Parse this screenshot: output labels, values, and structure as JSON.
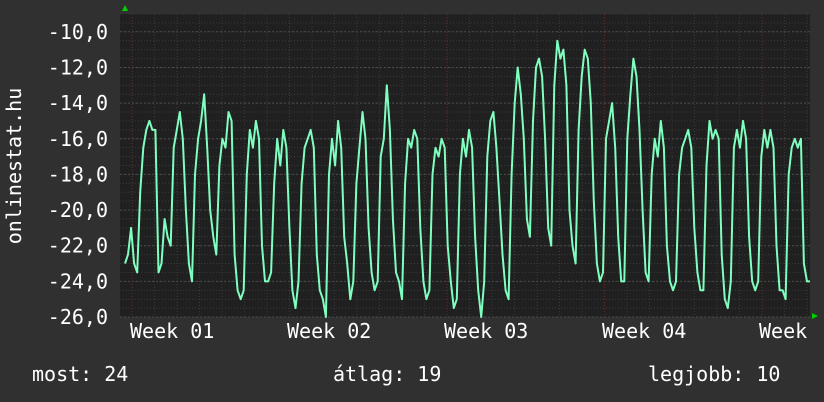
{
  "chart_data": {
    "type": "line",
    "ylabel": "onlinestat.hu",
    "ylim": [
      -26.0,
      -9.0
    ],
    "yticks": [
      "-10,0",
      "-12,0",
      "-14,0",
      "-16,0",
      "-18,0",
      "-20,0",
      "-22,0",
      "-24,0",
      "-26,0"
    ],
    "ytick_values": [
      -10,
      -12,
      -14,
      -16,
      -18,
      -20,
      -22,
      -24,
      -26
    ],
    "xticks": [
      "Week 01",
      "Week 02",
      "Week 03",
      "Week 04",
      "Week"
    ],
    "grid": true,
    "series": [
      {
        "color": "#7fffbf",
        "values": [
          -23.0,
          -22.5,
          -21.0,
          -23.0,
          -23.5,
          -19.0,
          -16.5,
          -15.5,
          -15.0,
          -15.5,
          -15.5,
          -23.5,
          -23.0,
          -20.5,
          -21.5,
          -22.0,
          -16.5,
          -15.5,
          -14.5,
          -16.0,
          -20.0,
          -23.0,
          -24.0,
          -18.0,
          -16.0,
          -15.0,
          -13.5,
          -16.5,
          -20.0,
          -21.5,
          -22.5,
          -17.5,
          -16.0,
          -16.5,
          -14.5,
          -15.0,
          -22.5,
          -24.5,
          -25.0,
          -24.5,
          -18.0,
          -15.5,
          -16.5,
          -15.0,
          -16.0,
          -22.0,
          -24.0,
          -24.0,
          -23.5,
          -18.5,
          -16.0,
          -17.5,
          -15.5,
          -16.5,
          -21.0,
          -24.5,
          -25.5,
          -24.0,
          -18.5,
          -16.5,
          -16.0,
          -15.5,
          -16.5,
          -22.5,
          -24.5,
          -25.0,
          -26.0,
          -18.0,
          -16.0,
          -17.5,
          -15.0,
          -16.5,
          -21.5,
          -23.0,
          -25.0,
          -24.0,
          -18.5,
          -16.5,
          -14.5,
          -16.0,
          -21.0,
          -23.5,
          -24.5,
          -24.0,
          -17.0,
          -16.0,
          -13.0,
          -15.5,
          -20.5,
          -23.5,
          -24.0,
          -25.0,
          -18.5,
          -16.0,
          -16.5,
          -15.5,
          -16.0,
          -21.0,
          -24.0,
          -25.0,
          -24.5,
          -18.0,
          -16.5,
          -17.0,
          -16.0,
          -16.5,
          -22.0,
          -24.0,
          -25.5,
          -25.0,
          -18.0,
          -16.0,
          -17.0,
          -15.5,
          -16.5,
          -21.5,
          -24.5,
          -26.0,
          -24.0,
          -17.0,
          -15.0,
          -14.5,
          -16.5,
          -19.5,
          -22.5,
          -24.5,
          -25.0,
          -18.0,
          -14.0,
          -12.0,
          -13.5,
          -16.0,
          -20.5,
          -21.5,
          -15.0,
          -12.0,
          -11.5,
          -12.5,
          -16.0,
          -21.0,
          -22.0,
          -13.0,
          -10.5,
          -11.5,
          -11.0,
          -13.0,
          -20.0,
          -22.0,
          -23.0,
          -15.5,
          -12.5,
          -11.0,
          -11.5,
          -14.0,
          -19.5,
          -23.0,
          -24.0,
          -23.5,
          -16.0,
          -15.0,
          -14.0,
          -16.5,
          -21.5,
          -24.0,
          -24.0,
          -16.0,
          -13.5,
          -11.5,
          -12.5,
          -15.5,
          -20.0,
          -23.5,
          -24.0,
          -18.0,
          -16.0,
          -17.0,
          -15.0,
          -16.5,
          -22.0,
          -24.0,
          -24.5,
          -24.0,
          -18.0,
          -16.5,
          -16.0,
          -15.5,
          -16.5,
          -21.0,
          -23.5,
          -24.5,
          -24.5,
          -17.5,
          -15.0,
          -16.0,
          -15.5,
          -16.0,
          -22.5,
          -25.0,
          -25.5,
          -24.0,
          -16.5,
          -15.5,
          -16.5,
          -15.0,
          -16.0,
          -21.5,
          -24.0,
          -24.5,
          -24.0,
          -17.0,
          -15.5,
          -16.5,
          -15.5,
          -16.5,
          -22.0,
          -24.5,
          -24.5,
          -25.0,
          -18.0,
          -16.5,
          -16.0,
          -16.5,
          -16.0,
          -23.0,
          -24.0,
          -24.0
        ]
      }
    ]
  },
  "footer": {
    "now": "most: 24",
    "avg": "átlag: 19",
    "best": "legjobb: 10"
  },
  "colors": {
    "background": "#303030",
    "plot_background": "#202020",
    "line": "#7fffbf",
    "grid": "#4a4a4a",
    "axis_marker": "#00d000"
  }
}
